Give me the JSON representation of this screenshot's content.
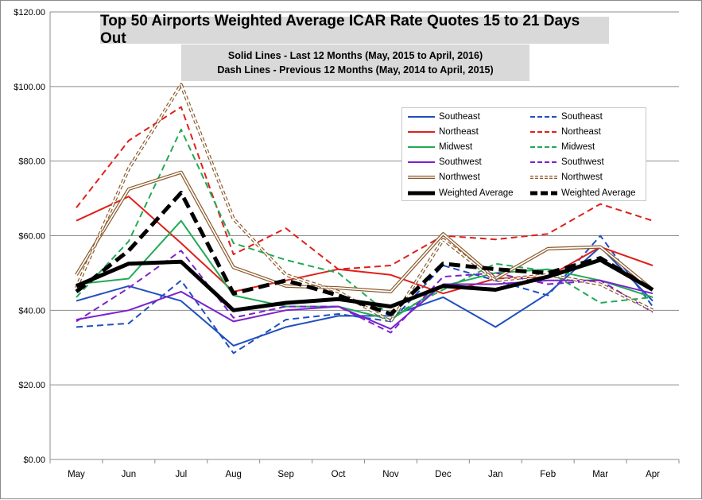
{
  "chart_data": {
    "type": "line",
    "title": "Top 50 Airports Weighted Average ICAR Rate Quotes 15 to 21 Days Out",
    "subtitle": [
      "Solid Lines - Last 12 Months  (May, 2015 to April, 2016)",
      "Dash Lines - Previous 12 Months (May, 2014 to April, 2015)"
    ],
    "categories": [
      "May",
      "Jun",
      "Jul",
      "Aug",
      "Sep",
      "Oct",
      "Nov",
      "Dec",
      "Jan",
      "Feb",
      "Mar",
      "Apr"
    ],
    "y_ticks": [
      "$0.00",
      "$20.00",
      "$40.00",
      "$60.00",
      "$80.00",
      "$100.00",
      "$120.00"
    ],
    "ylim": [
      0,
      120
    ],
    "grid": "horizontal",
    "legend_position": "top-right",
    "series": [
      {
        "name": "Southeast",
        "style": "solid",
        "color": "#1f4fbf",
        "width": 2,
        "values": [
          42.5,
          46.5,
          42.5,
          30.5,
          35.5,
          38.5,
          38.5,
          43.5,
          35.5,
          44.5,
          57.0,
          42.5
        ]
      },
      {
        "name": "Southeast",
        "style": "dash",
        "color": "#1f4fbf",
        "width": 2,
        "values": [
          35.5,
          36.5,
          48.0,
          28.5,
          37.5,
          39.0,
          37.0,
          52.0,
          48.0,
          44.0,
          60.0,
          41.0
        ]
      },
      {
        "name": "Northeast",
        "style": "solid",
        "color": "#e0201b",
        "width": 2,
        "values": [
          64.0,
          70.5,
          58.0,
          45.0,
          48.0,
          51.0,
          49.5,
          44.5,
          48.5,
          49.0,
          57.0,
          52.0
        ]
      },
      {
        "name": "Northeast",
        "style": "dash",
        "color": "#e0201b",
        "width": 2,
        "values": [
          67.5,
          85.5,
          94.5,
          55.0,
          62.0,
          51.0,
          52.0,
          60.0,
          59.0,
          60.5,
          68.5,
          64.0
        ]
      },
      {
        "name": "Midwest",
        "style": "solid",
        "color": "#22aa55",
        "width": 2,
        "values": [
          47.0,
          48.5,
          64.0,
          44.0,
          41.0,
          41.0,
          37.5,
          46.5,
          50.0,
          51.0,
          48.0,
          43.5
        ]
      },
      {
        "name": "Midwest",
        "style": "dash",
        "color": "#22aa55",
        "width": 2,
        "values": [
          43.5,
          58.5,
          88.5,
          58.0,
          53.5,
          50.0,
          38.5,
          45.5,
          52.5,
          50.5,
          42.0,
          43.5
        ]
      },
      {
        "name": "Southwest",
        "style": "solid",
        "color": "#7a22cc",
        "width": 2,
        "values": [
          37.5,
          40.0,
          45.0,
          37.0,
          40.0,
          41.0,
          35.0,
          47.0,
          47.0,
          48.0,
          48.0,
          44.5
        ]
      },
      {
        "name": "Southwest",
        "style": "dash",
        "color": "#7a22cc",
        "width": 2,
        "values": [
          37.0,
          46.0,
          56.0,
          38.0,
          41.0,
          41.0,
          34.0,
          49.0,
          50.0,
          47.0,
          48.0,
          39.5
        ]
      },
      {
        "name": "Northwest",
        "style": "solid",
        "color": "#8b5a2b",
        "width": 1.2,
        "double": true,
        "values": [
          49.5,
          72.5,
          77.0,
          51.5,
          46.5,
          46.0,
          45.0,
          60.5,
          48.5,
          56.5,
          57.0,
          45.5
        ]
      },
      {
        "name": "Northwest",
        "style": "dash",
        "color": "#8b5a2b",
        "width": 1.2,
        "double": true,
        "values": [
          46.0,
          78.0,
          100.5,
          64.5,
          49.5,
          45.0,
          37.0,
          59.0,
          48.0,
          49.5,
          47.0,
          40.0
        ]
      },
      {
        "name": "Weighted Average",
        "style": "solid",
        "color": "#000000",
        "width": 5,
        "values": [
          46.5,
          52.5,
          53.0,
          40.0,
          42.0,
          43.0,
          41.0,
          46.5,
          45.5,
          49.0,
          53.5,
          45.5
        ]
      },
      {
        "name": "Weighted Average",
        "style": "dash",
        "color": "#000000",
        "width": 5,
        "values": [
          45.0,
          56.0,
          71.5,
          44.5,
          48.0,
          44.0,
          39.0,
          52.5,
          51.0,
          50.0,
          54.0,
          45.5
        ]
      }
    ]
  }
}
